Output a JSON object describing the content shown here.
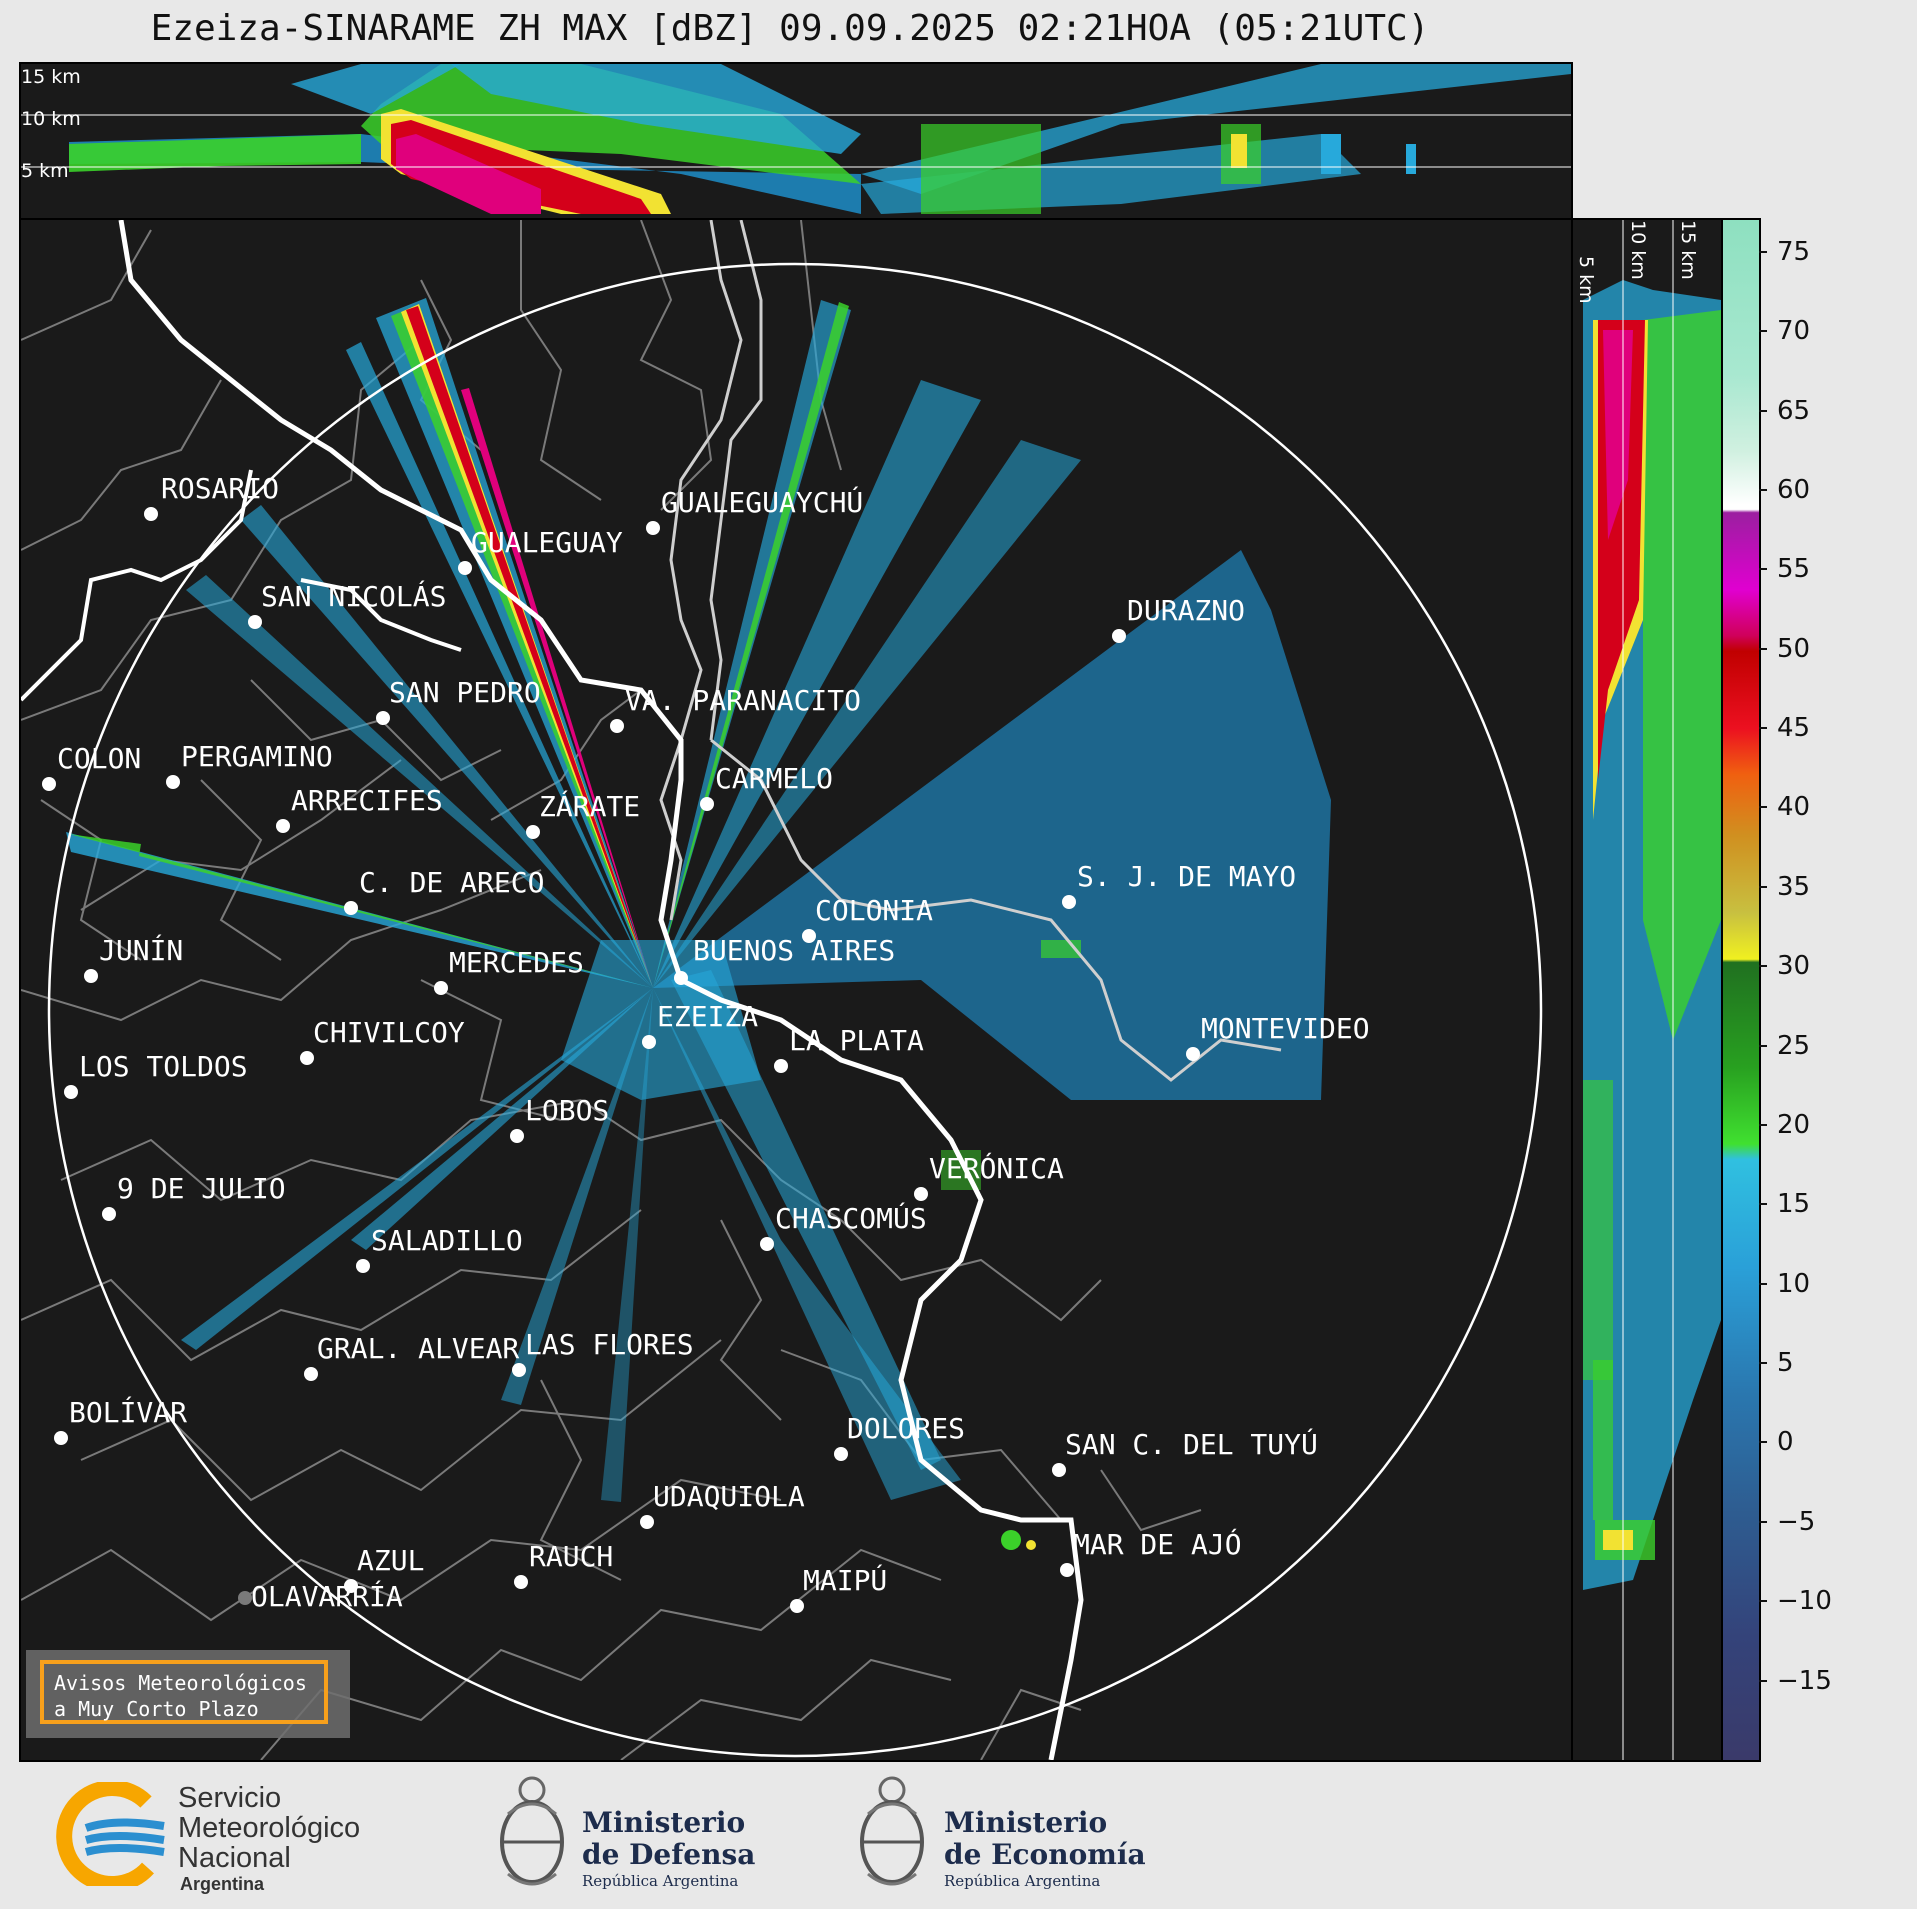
{
  "title": "Ezeiza-SINARAME ZH MAX [dBZ] 09.09.2025 02:21HOA (05:21UTC)",
  "top_panel": {
    "height_labels": [
      "15 km",
      "10 km",
      "5 km"
    ]
  },
  "side_panel": {
    "height_labels": [
      "5 km",
      "10 km",
      "15 km"
    ]
  },
  "colorbar": {
    "unit": "dBZ",
    "ticks": [
      "75",
      "70",
      "65",
      "60",
      "55",
      "50",
      "45",
      "40",
      "35",
      "30",
      "25",
      "20",
      "15",
      "10",
      "5",
      "0",
      "−5",
      "−10",
      "−15"
    ],
    "range": [
      -20,
      77
    ]
  },
  "radar_site": {
    "name": "EZEIZA",
    "range_ring_km": 240
  },
  "cities": [
    {
      "name": "ROSARIO"
    },
    {
      "name": "GUALEGUAYCHÚ"
    },
    {
      "name": "GUALEGUAY"
    },
    {
      "name": "SAN NICOLÁS"
    },
    {
      "name": "DURAZNO"
    },
    {
      "name": "SAN PEDRO"
    },
    {
      "name": "VA. PARANACITO"
    },
    {
      "name": "COLON"
    },
    {
      "name": "PERGAMINO"
    },
    {
      "name": "CARMELO"
    },
    {
      "name": "ARRECIFES"
    },
    {
      "name": "ZÁRATE"
    },
    {
      "name": "S. J. DE MAYO"
    },
    {
      "name": "C. DE ARECO"
    },
    {
      "name": "COLONIA"
    },
    {
      "name": "JUNÍN"
    },
    {
      "name": "BUENOS AIRES"
    },
    {
      "name": "MERCEDES"
    },
    {
      "name": "EZEIZA"
    },
    {
      "name": "MONTEVIDEO"
    },
    {
      "name": "CHIVILCOY"
    },
    {
      "name": "LA PLATA"
    },
    {
      "name": "LOS TOLDOS"
    },
    {
      "name": "LOBOS"
    },
    {
      "name": "VERÓNICA"
    },
    {
      "name": "9 DE JULIO"
    },
    {
      "name": "CHASCOMÚS"
    },
    {
      "name": "SALADILLO"
    },
    {
      "name": "GRAL. ALVEAR"
    },
    {
      "name": "LAS FLORES"
    },
    {
      "name": "BOLÍVAR"
    },
    {
      "name": "DOLORES"
    },
    {
      "name": "SAN C. DEL TUYÚ"
    },
    {
      "name": "UDAQUIOLA"
    },
    {
      "name": "MAR DE AJÓ"
    },
    {
      "name": "AZUL"
    },
    {
      "name": "RAUCH"
    },
    {
      "name": "OLAVARRÍA"
    },
    {
      "name": "MAIPÚ"
    }
  ],
  "aviso": {
    "line1": "Avisos Meteorológicos",
    "line2": "a Muy Corto Plazo"
  },
  "footer": {
    "smn": {
      "line1": "Servicio",
      "line2": "Meteorológico",
      "line3": "Nacional",
      "line4": "Argentina"
    },
    "defensa": {
      "line1": "Ministerio",
      "line2": "de Defensa",
      "line3": "República Argentina"
    },
    "economia": {
      "line1": "Ministerio",
      "line2": "de Economía",
      "line3": "República Argentina"
    }
  },
  "colors": {
    "panel_bg": "#1a1a1a",
    "ring": "#ffffff",
    "accent_border": "#f7a01c",
    "smn_blue": "#2b8fd0",
    "smn_orange": "#f7a600"
  }
}
